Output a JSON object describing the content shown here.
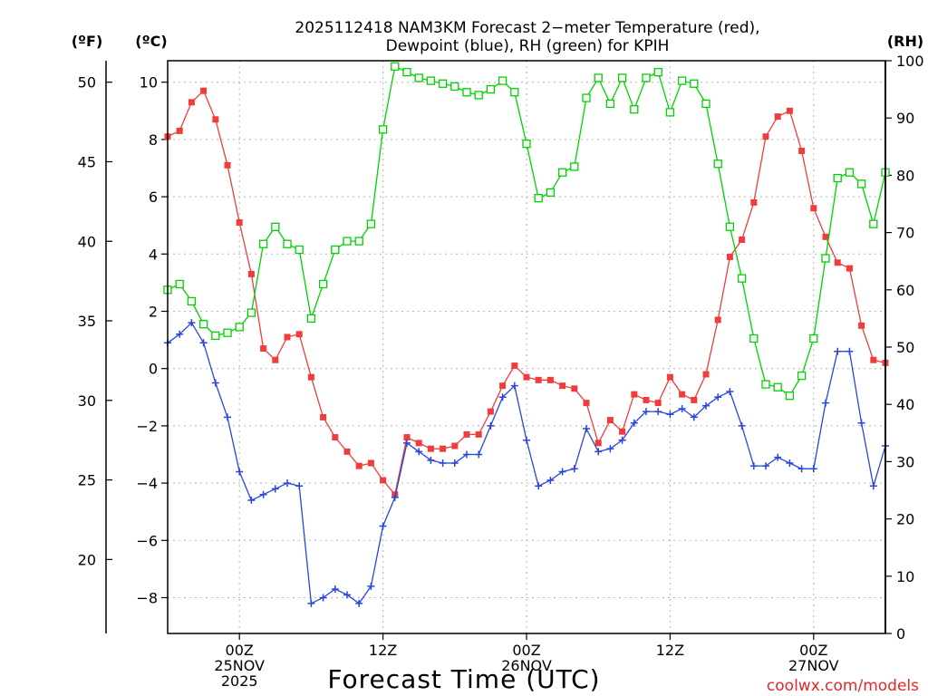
{
  "chart_data": {
    "type": "line",
    "title_lines": [
      "2025112418 NAM3KM Forecast 2−meter Temperature (red),",
      "Dewpoint (blue), RH (green) for KPIH"
    ],
    "xlabel": "Forecast Time (UTC)",
    "credit": "coolwx.com/models",
    "unit_labels": {
      "fahrenheit": "(ºF)",
      "celsius": "(ºC)",
      "rh": "(RH)"
    },
    "x_hours_range": [
      -6,
      54
    ],
    "x_ticks": [
      {
        "hour": 0,
        "lines": [
          "00Z",
          "25NOV",
          "2025"
        ]
      },
      {
        "hour": 12,
        "lines": [
          "12Z"
        ]
      },
      {
        "hour": 24,
        "lines": [
          "00Z",
          "26NOV"
        ]
      },
      {
        "hour": 36,
        "lines": [
          "12Z"
        ]
      },
      {
        "hour": 48,
        "lines": [
          "00Z",
          "27NOV"
        ]
      }
    ],
    "celsius_axis": {
      "ylim": [
        -9.25,
        10.75
      ],
      "ticks": [
        10,
        8,
        6,
        4,
        2,
        0,
        -2,
        -4,
        -6,
        -8
      ],
      "tick_labels": [
        "10",
        "8",
        "6",
        "4",
        "2",
        "0",
        "−2",
        "−4",
        "−6",
        "−8"
      ]
    },
    "fahrenheit_axis": {
      "ticks": [
        50,
        45,
        40,
        35,
        30,
        25,
        20
      ],
      "tick_labels": [
        "50",
        "45",
        "40",
        "35",
        "30",
        "25",
        "20"
      ]
    },
    "rh_axis": {
      "ylim": [
        0,
        100
      ],
      "ticks": [
        100,
        90,
        80,
        70,
        60,
        50,
        40,
        30,
        20,
        10,
        0
      ],
      "tick_labels": [
        "100",
        "90",
        "80",
        "70",
        "60",
        "50",
        "40",
        "30",
        "20",
        "10",
        "0"
      ]
    },
    "colors": {
      "temperature": "#f03c3c",
      "dewpoint": "#2846dc",
      "rh": "#00d200",
      "grid": "#b4b4b4",
      "credit": "#e02828"
    },
    "series": [
      {
        "name": "Temperature",
        "units": "C",
        "marker": "filled-square",
        "hours": [
          -6,
          -5,
          -4,
          -3,
          -2,
          -1,
          0,
          1,
          2,
          3,
          4,
          5,
          6,
          7,
          8,
          9,
          10,
          11,
          12,
          13,
          14,
          15,
          16,
          17,
          18,
          19,
          20,
          21,
          22,
          23,
          24,
          25,
          26,
          27,
          28,
          29,
          30,
          31,
          32,
          33,
          34,
          35,
          36,
          37,
          38,
          39,
          40,
          41,
          42,
          43,
          44,
          45,
          46,
          47,
          48,
          49,
          50,
          51,
          52,
          53,
          54
        ],
        "values": [
          8.1,
          8.3,
          9.3,
          9.7,
          8.7,
          7.1,
          5.1,
          3.3,
          0.7,
          0.3,
          1.1,
          1.2,
          -0.3,
          -1.7,
          -2.4,
          -2.9,
          -3.4,
          -3.3,
          -3.9,
          -4.4,
          -2.4,
          -2.6,
          -2.8,
          -2.8,
          -2.7,
          -2.3,
          -2.3,
          -1.5,
          -0.6,
          0.1,
          -0.3,
          -0.4,
          -0.4,
          -0.6,
          -0.7,
          -1.2,
          -2.6,
          -1.8,
          -2.2,
          -0.9,
          -1.1,
          -1.2,
          -0.3,
          -0.9,
          -1.1,
          -0.2,
          1.7,
          3.9,
          4.5,
          5.8,
          8.1,
          8.8,
          9.0,
          7.6,
          5.6,
          4.6,
          3.7,
          3.5,
          1.5,
          0.3,
          0.2
        ]
      },
      {
        "name": "Dewpoint",
        "units": "C",
        "marker": "plus",
        "hours": [
          -6,
          -5,
          -4,
          -3,
          -2,
          -1,
          0,
          1,
          2,
          3,
          4,
          5,
          6,
          7,
          8,
          9,
          10,
          11,
          12,
          13,
          14,
          15,
          16,
          17,
          18,
          19,
          20,
          21,
          22,
          23,
          24,
          25,
          26,
          27,
          28,
          29,
          30,
          31,
          32,
          33,
          34,
          35,
          36,
          37,
          38,
          39,
          40,
          41,
          42,
          43,
          44,
          45,
          46,
          47,
          48,
          49,
          50,
          51,
          52,
          53,
          54
        ],
        "values": [
          0.9,
          1.2,
          1.6,
          0.9,
          -0.5,
          -1.7,
          -3.6,
          -4.6,
          -4.4,
          -4.2,
          -4.0,
          -4.1,
          -8.2,
          -8.0,
          -7.7,
          -7.9,
          -8.2,
          -7.6,
          -5.5,
          -4.5,
          -2.6,
          -2.9,
          -3.2,
          -3.3,
          -3.3,
          -3.0,
          -3.0,
          -2.0,
          -1.0,
          -0.6,
          -2.5,
          -4.1,
          -3.9,
          -3.6,
          -3.5,
          -2.1,
          -2.9,
          -2.8,
          -2.5,
          -1.9,
          -1.5,
          -1.5,
          -1.6,
          -1.4,
          -1.7,
          -1.3,
          -1.0,
          -0.8,
          -2.0,
          -3.4,
          -3.4,
          -3.1,
          -3.3,
          -3.5,
          -3.5,
          -1.2,
          0.6,
          0.6,
          -1.9,
          -4.1,
          -2.7
        ]
      },
      {
        "name": "Relative Humidity",
        "units": "%",
        "marker": "open-square",
        "hours": [
          -6,
          -5,
          -4,
          -3,
          -2,
          -1,
          0,
          1,
          2,
          3,
          4,
          5,
          6,
          7,
          8,
          9,
          10,
          11,
          12,
          13,
          14,
          15,
          16,
          17,
          18,
          19,
          20,
          21,
          22,
          23,
          24,
          25,
          26,
          27,
          28,
          29,
          30,
          31,
          32,
          33,
          34,
          35,
          36,
          37,
          38,
          39,
          40,
          41,
          42,
          43,
          44,
          45,
          46,
          47,
          48,
          49,
          50,
          51,
          52,
          53,
          54
        ],
        "values": [
          60,
          61,
          58,
          54,
          52,
          52.5,
          53.5,
          56,
          68,
          71,
          68,
          67,
          55,
          61,
          67,
          68.5,
          68.5,
          71.5,
          88,
          99,
          98,
          97,
          96.5,
          96,
          95.5,
          94.5,
          94,
          95,
          96.5,
          94.5,
          85.5,
          76,
          77,
          80.5,
          81.5,
          93.5,
          97,
          92.5,
          97,
          91.5,
          97,
          98,
          91,
          96.5,
          96,
          92.5,
          82,
          71,
          62,
          51.5,
          43.5,
          43,
          41.5,
          45,
          51.5,
          65.5,
          79.5,
          80.5,
          78.5,
          71.5,
          80.5
        ]
      }
    ]
  }
}
